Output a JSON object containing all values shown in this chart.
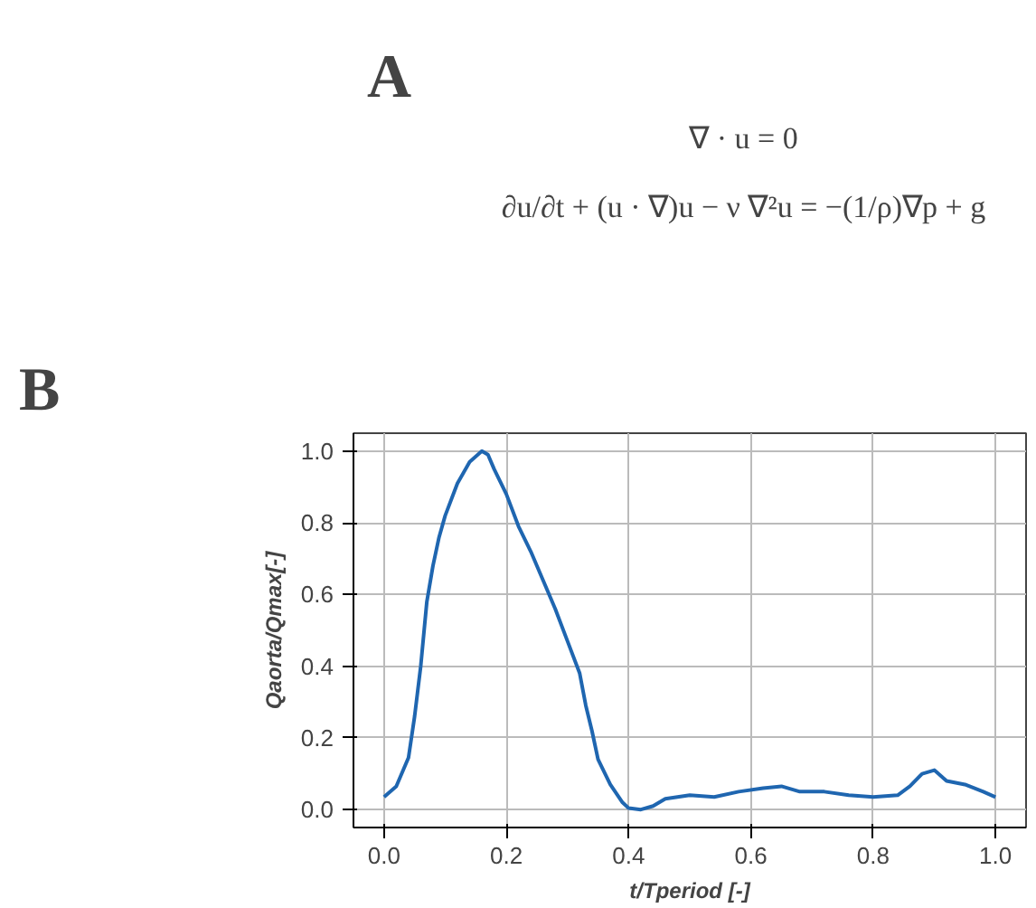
{
  "chart_data": [
    {
      "type": "other",
      "annotations": [
        "A",
        "∇ · u = 0",
        "∂u/∂t + (u · ∇)u − ν ∇²u = −(1/ρ)∇p + g"
      ]
    },
    {
      "type": "line",
      "annotations": [
        "B"
      ],
      "xlabel": "t/Tperiod [-]",
      "ylabel": "Qaorta/Qmax[-]",
      "x": [
        0.0,
        0.02,
        0.04,
        0.05,
        0.06,
        0.07,
        0.08,
        0.09,
        0.1,
        0.12,
        0.14,
        0.16,
        0.17,
        0.18,
        0.2,
        0.22,
        0.24,
        0.26,
        0.28,
        0.3,
        0.32,
        0.33,
        0.34,
        0.35,
        0.37,
        0.39,
        0.4,
        0.42,
        0.44,
        0.46,
        0.5,
        0.54,
        0.58,
        0.62,
        0.65,
        0.68,
        0.72,
        0.76,
        0.8,
        0.84,
        0.86,
        0.88,
        0.9,
        0.92,
        0.95,
        0.98,
        1.0
      ],
      "series": [
        {
          "color": "#1f66b0",
          "values": [
            0.035,
            0.065,
            0.145,
            0.26,
            0.4,
            0.58,
            0.68,
            0.76,
            0.82,
            0.91,
            0.97,
            1.0,
            0.99,
            0.95,
            0.88,
            0.79,
            0.72,
            0.64,
            0.56,
            0.47,
            0.38,
            0.29,
            0.22,
            0.14,
            0.07,
            0.02,
            0.004,
            0.0,
            0.01,
            0.03,
            0.04,
            0.035,
            0.05,
            0.06,
            0.065,
            0.05,
            0.05,
            0.04,
            0.035,
            0.04,
            0.065,
            0.1,
            0.11,
            0.08,
            0.07,
            0.05,
            0.035
          ]
        }
      ],
      "xlim": [
        -0.05,
        1.05
      ],
      "ylim": [
        -0.05,
        1.05
      ],
      "xticks": [
        {
          "value": 0,
          "label": "0.0"
        },
        0.2,
        0.4,
        0.6,
        0.8,
        {
          "value": 1,
          "label": "1.0"
        }
      ],
      "yticks": [
        {
          "value": 0,
          "label": "0.0"
        },
        0.2,
        0.4,
        0.6,
        0.8,
        {
          "value": 1,
          "label": "1.0"
        }
      ],
      "grid": true,
      "marker": "none",
      "line_style": "solid"
    }
  ]
}
